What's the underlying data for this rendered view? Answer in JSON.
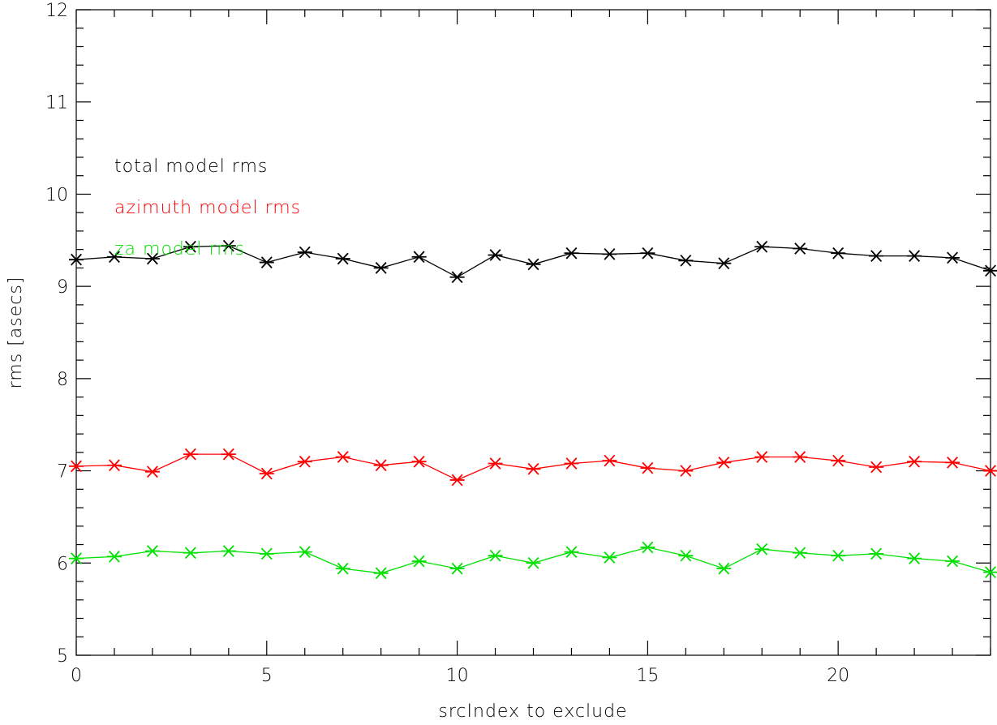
{
  "chart_data": {
    "type": "line",
    "title": "",
    "xlabel": "srcIndex to exclude",
    "ylabel": "rms [asecs]",
    "xlim": [
      0,
      24
    ],
    "ylim": [
      5,
      12
    ],
    "xticks": [
      0,
      5,
      10,
      15,
      20
    ],
    "yticks": [
      5,
      6,
      7,
      8,
      9,
      10,
      11,
      12
    ],
    "marker": "asterisk",
    "grid": false,
    "legend_placement": "upper-left",
    "x": [
      0,
      1,
      2,
      3,
      4,
      5,
      6,
      7,
      8,
      9,
      10,
      11,
      12,
      13,
      14,
      15,
      16,
      17,
      18,
      19,
      20,
      21,
      22,
      23,
      24
    ],
    "series": [
      {
        "name": "total model rms",
        "color": "#000000",
        "values": [
          9.29,
          9.32,
          9.3,
          9.43,
          9.44,
          9.26,
          9.37,
          9.3,
          9.2,
          9.32,
          9.1,
          9.34,
          9.24,
          9.36,
          9.35,
          9.36,
          9.28,
          9.25,
          9.43,
          9.41,
          9.36,
          9.33,
          9.33,
          9.31,
          9.17
        ]
      },
      {
        "name": "azimuth model rms",
        "color": "#ff0000",
        "values": [
          7.05,
          7.06,
          6.99,
          7.18,
          7.18,
          6.97,
          7.1,
          7.15,
          7.06,
          7.1,
          6.9,
          7.08,
          7.02,
          7.08,
          7.11,
          7.03,
          7.0,
          7.09,
          7.15,
          7.15,
          7.11,
          7.04,
          7.1,
          7.09,
          7.0
        ]
      },
      {
        "name": "za model rms",
        "color": "#00e000",
        "values": [
          6.05,
          6.07,
          6.13,
          6.11,
          6.13,
          6.1,
          6.12,
          5.94,
          5.89,
          6.02,
          5.94,
          6.08,
          6.0,
          6.12,
          6.06,
          6.17,
          6.08,
          5.94,
          6.15,
          6.11,
          6.08,
          6.1,
          6.05,
          6.02,
          5.9
        ]
      }
    ]
  }
}
